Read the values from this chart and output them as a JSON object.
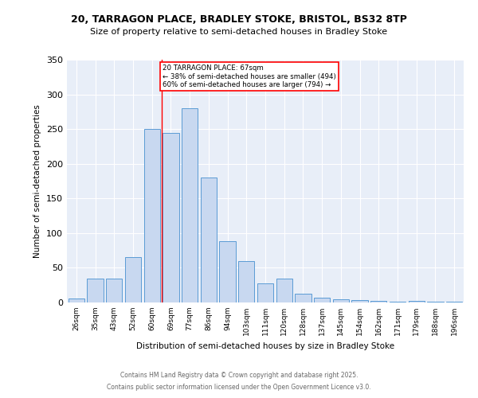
{
  "title1": "20, TARRAGON PLACE, BRADLEY STOKE, BRISTOL, BS32 8TP",
  "title2": "Size of property relative to semi-detached houses in Bradley Stoke",
  "xlabel": "Distribution of semi-detached houses by size in Bradley Stoke",
  "ylabel": "Number of semi-detached properties",
  "bin_labels": [
    "26sqm",
    "35sqm",
    "43sqm",
    "52sqm",
    "60sqm",
    "69sqm",
    "77sqm",
    "86sqm",
    "94sqm",
    "103sqm",
    "111sqm",
    "120sqm",
    "128sqm",
    "137sqm",
    "145sqm",
    "154sqm",
    "162sqm",
    "171sqm",
    "179sqm",
    "188sqm",
    "196sqm"
  ],
  "heights": [
    6,
    34,
    35,
    65,
    250,
    245,
    280,
    180,
    88,
    60,
    27,
    34,
    13,
    7,
    5,
    4,
    2,
    1,
    2,
    1,
    1
  ],
  "vline_pos": 4.5,
  "annotation_line1": "20 TARRAGON PLACE: 67sqm",
  "annotation_line2": "← 38% of semi-detached houses are smaller (494)",
  "annotation_line3": "60% of semi-detached houses are larger (794) →",
  "bar_color": "#c8d8f0",
  "bar_edge_color": "#5b9bd5",
  "vline_color": "red",
  "background_color": "#e8eef8",
  "footer1": "Contains HM Land Registry data © Crown copyright and database right 2025.",
  "footer2": "Contains public sector information licensed under the Open Government Licence v3.0.",
  "ylim": [
    0,
    350
  ],
  "yticks": [
    0,
    50,
    100,
    150,
    200,
    250,
    300,
    350
  ]
}
